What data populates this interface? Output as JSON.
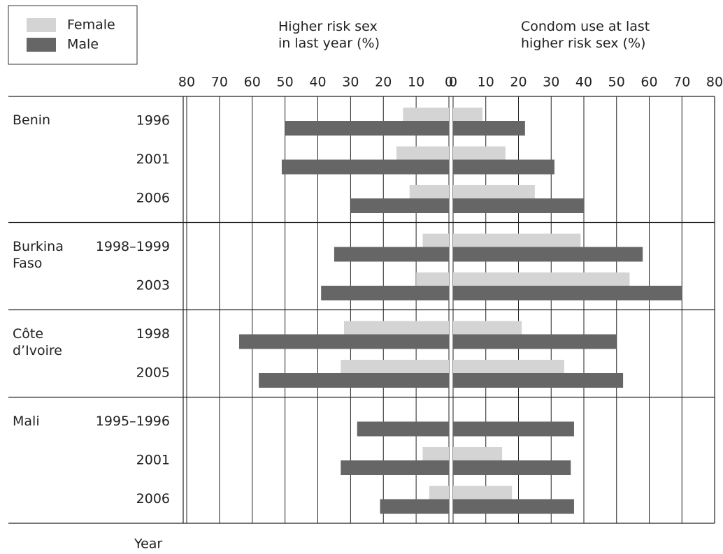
{
  "groups": [
    {
      "name": "Benin",
      "categories": [
        "1996",
        "2001",
        "2006"
      ]
    },
    {
      "name": "Burkina Faso",
      "categories": [
        "1998–1999",
        "2003"
      ]
    },
    {
      "name": "Côte d’Ivoire",
      "categories": [
        "1998",
        "2005"
      ]
    },
    {
      "name": "Mali",
      "categories": [
        "1995–1996",
        "2001",
        "2006"
      ]
    }
  ],
  "year_label": "Year",
  "chart_data": [
    {
      "type": "bar",
      "orientation": "horizontal",
      "title": "Higher risk sex in last year (%)",
      "xlim": [
        80,
        0
      ],
      "xticks": [
        80,
        70,
        60,
        50,
        40,
        30,
        20,
        10,
        0
      ],
      "grid": true,
      "series": [
        {
          "name": "Female",
          "color": "#d4d4d4",
          "values": [
            14,
            16,
            12,
            8,
            10,
            32,
            33,
            null,
            8,
            6
          ]
        },
        {
          "name": "Male",
          "color": "#666666",
          "values": [
            50,
            51,
            30,
            35,
            39,
            64,
            58,
            28,
            33,
            21
          ]
        }
      ]
    },
    {
      "type": "bar",
      "orientation": "horizontal",
      "title": "Condom use at last higher risk sex (%)",
      "xlim": [
        0,
        80
      ],
      "xticks": [
        0,
        10,
        20,
        30,
        40,
        50,
        60,
        70,
        80
      ],
      "grid": true,
      "series": [
        {
          "color": "#d4d4d4",
          "values": [
            9,
            16,
            25,
            39,
            54,
            21,
            34,
            null,
            15,
            18
          ]
        },
        {
          "color": "#666666",
          "values": [
            22,
            31,
            40,
            58,
            70,
            50,
            52,
            37,
            36,
            37
          ]
        }
      ]
    }
  ]
}
